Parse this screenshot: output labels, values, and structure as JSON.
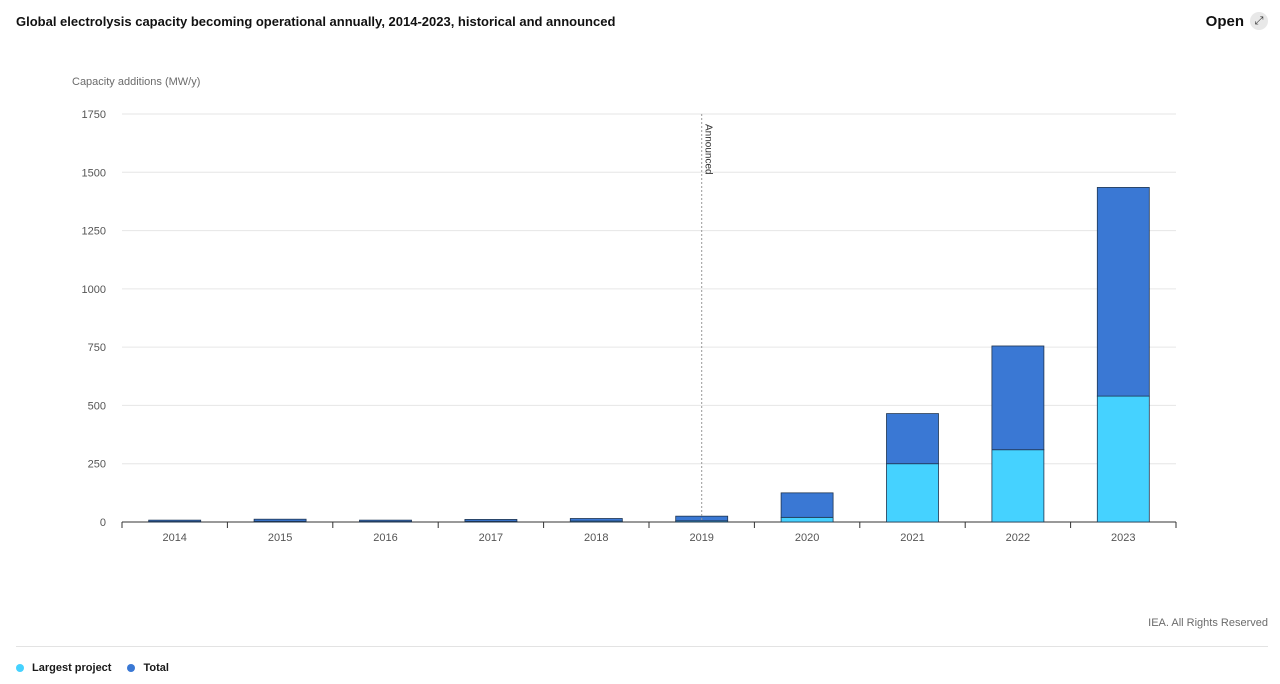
{
  "header": {
    "title": "Global electrolysis capacity becoming operational annually, 2014-2023, historical and announced",
    "open_label": "Open",
    "open_icon": "expand-arrows-icon"
  },
  "footer": {
    "source": "IEA. All Rights Reserved"
  },
  "colors": {
    "largest_project": "#45d2ff",
    "total": "#3a78d4",
    "grid": "#e6e6e6",
    "axis": "#333333"
  },
  "chart_data": {
    "type": "bar",
    "stacked": true,
    "title": "Global electrolysis capacity becoming operational annually, 2014-2023, historical and announced",
    "ylabel": "Capacity additions (MW/y)",
    "xlabel": "",
    "ylim": [
      0,
      1750
    ],
    "yticks": [
      0,
      250,
      500,
      750,
      1000,
      1250,
      1500,
      1750
    ],
    "grid": true,
    "legend_position": "bottom-left",
    "categories": [
      "2014",
      "2015",
      "2016",
      "2017",
      "2018",
      "2019",
      "2020",
      "2021",
      "2022",
      "2023"
    ],
    "series": [
      {
        "name": "Largest project",
        "color": "#45d2ff",
        "values": [
          2,
          3,
          2,
          3,
          4,
          5,
          20,
          250,
          310,
          540
        ]
      },
      {
        "name": "Total",
        "color": "#3a78d4",
        "values": [
          6,
          9,
          6,
          8,
          11,
          20,
          105,
          215,
          445,
          895
        ]
      }
    ],
    "annotations": [
      {
        "label": "Announced",
        "after_category": "2019"
      }
    ]
  }
}
